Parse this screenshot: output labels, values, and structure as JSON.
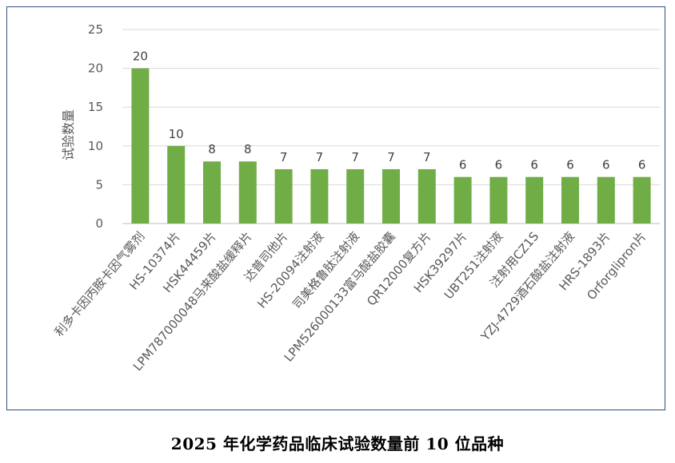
{
  "chart_data": {
    "type": "bar",
    "title": "2025 年化学药品临床试验数量前 10 位品种",
    "xlabel": "",
    "ylabel": "试验数量",
    "ylim": [
      0,
      25
    ],
    "yticks": [
      0,
      5,
      10,
      15,
      20,
      25
    ],
    "grid": true,
    "legend": "none",
    "bar_color": "#70ad47",
    "categories": [
      "利多卡因丙胺卡因气雾剂",
      "HS-10374片",
      "HSK44459片",
      "LPM787000048马来酸盐缓释片",
      "达普司他片",
      "HS-20094注射液",
      "司美格鲁肽注射液",
      "LPM526000133富马酸盐胶囊",
      "QR12000复方片",
      "HSK39297片",
      "UBT251注射液",
      "注射用CZ1S",
      "YZJ-4729酒石酸盐注射液",
      "HRS-1893片",
      "Orforglipron片"
    ],
    "values": [
      20,
      10,
      8,
      8,
      7,
      7,
      7,
      7,
      7,
      6,
      6,
      6,
      6,
      6,
      6
    ]
  }
}
